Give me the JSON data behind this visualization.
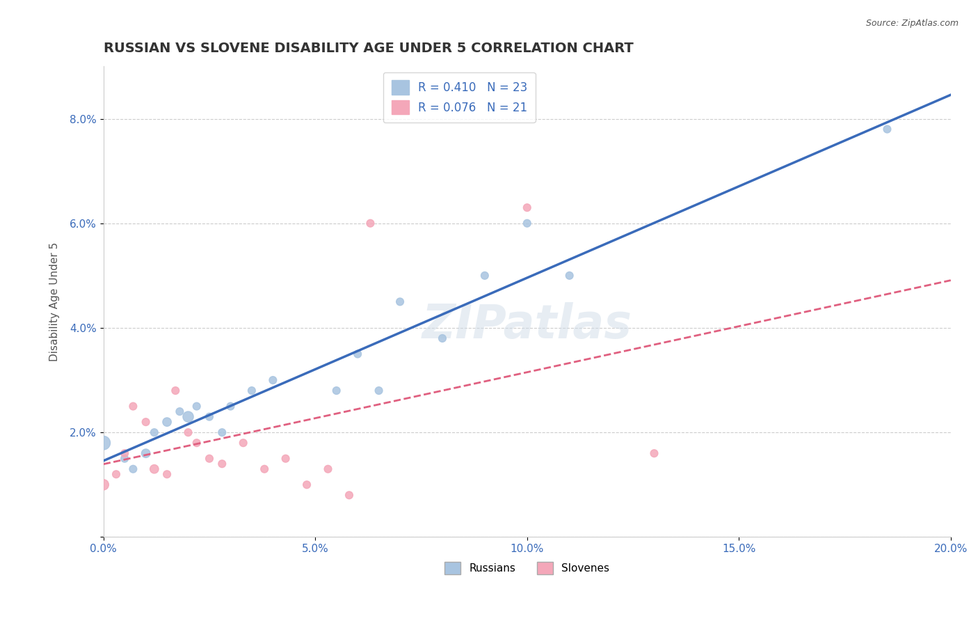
{
  "title": "RUSSIAN VS SLOVENE DISABILITY AGE UNDER 5 CORRELATION CHART",
  "source": "Source: ZipAtlas.com",
  "ylabel_label": "Disability Age Under 5",
  "xlim": [
    0.0,
    0.2
  ],
  "ylim": [
    0.0,
    0.09
  ],
  "xticks": [
    0.0,
    0.05,
    0.1,
    0.15,
    0.2
  ],
  "xtick_labels": [
    "0.0%",
    "5.0%",
    "10.0%",
    "15.0%",
    "20.0%"
  ],
  "yticks": [
    0.0,
    0.02,
    0.04,
    0.06,
    0.08
  ],
  "ytick_labels": [
    "",
    "2.0%",
    "4.0%",
    "6.0%",
    "8.0%"
  ],
  "russian_R": 0.41,
  "russian_N": 23,
  "slovene_R": 0.076,
  "slovene_N": 21,
  "russian_color": "#a8c4e0",
  "slovene_color": "#f4a7b9",
  "russian_line_color": "#3a6bba",
  "slovene_line_color": "#e06080",
  "watermark": "ZIPatlas",
  "background_color": "#ffffff",
  "russians_x": [
    0.0,
    0.005,
    0.007,
    0.01,
    0.012,
    0.015,
    0.018,
    0.02,
    0.022,
    0.025,
    0.028,
    0.03,
    0.035,
    0.04,
    0.055,
    0.06,
    0.065,
    0.07,
    0.08,
    0.09,
    0.1,
    0.11,
    0.185
  ],
  "russians_y": [
    0.018,
    0.015,
    0.013,
    0.016,
    0.02,
    0.022,
    0.024,
    0.023,
    0.025,
    0.023,
    0.02,
    0.025,
    0.028,
    0.03,
    0.028,
    0.035,
    0.028,
    0.045,
    0.038,
    0.05,
    0.06,
    0.05,
    0.078
  ],
  "russians_size": [
    200,
    60,
    60,
    80,
    60,
    80,
    60,
    120,
    60,
    60,
    60,
    60,
    60,
    60,
    60,
    60,
    60,
    60,
    60,
    60,
    60,
    60,
    60
  ],
  "slovenes_x": [
    0.0,
    0.003,
    0.005,
    0.007,
    0.01,
    0.012,
    0.015,
    0.017,
    0.02,
    0.022,
    0.025,
    0.028,
    0.033,
    0.038,
    0.043,
    0.048,
    0.053,
    0.058,
    0.063,
    0.1,
    0.13
  ],
  "slovenes_y": [
    0.01,
    0.012,
    0.016,
    0.025,
    0.022,
    0.013,
    0.012,
    0.028,
    0.02,
    0.018,
    0.015,
    0.014,
    0.018,
    0.013,
    0.015,
    0.01,
    0.013,
    0.008,
    0.06,
    0.063,
    0.016
  ],
  "slovenes_size": [
    120,
    60,
    60,
    60,
    60,
    80,
    60,
    60,
    60,
    60,
    60,
    60,
    60,
    60,
    60,
    60,
    60,
    60,
    60,
    60,
    60
  ]
}
